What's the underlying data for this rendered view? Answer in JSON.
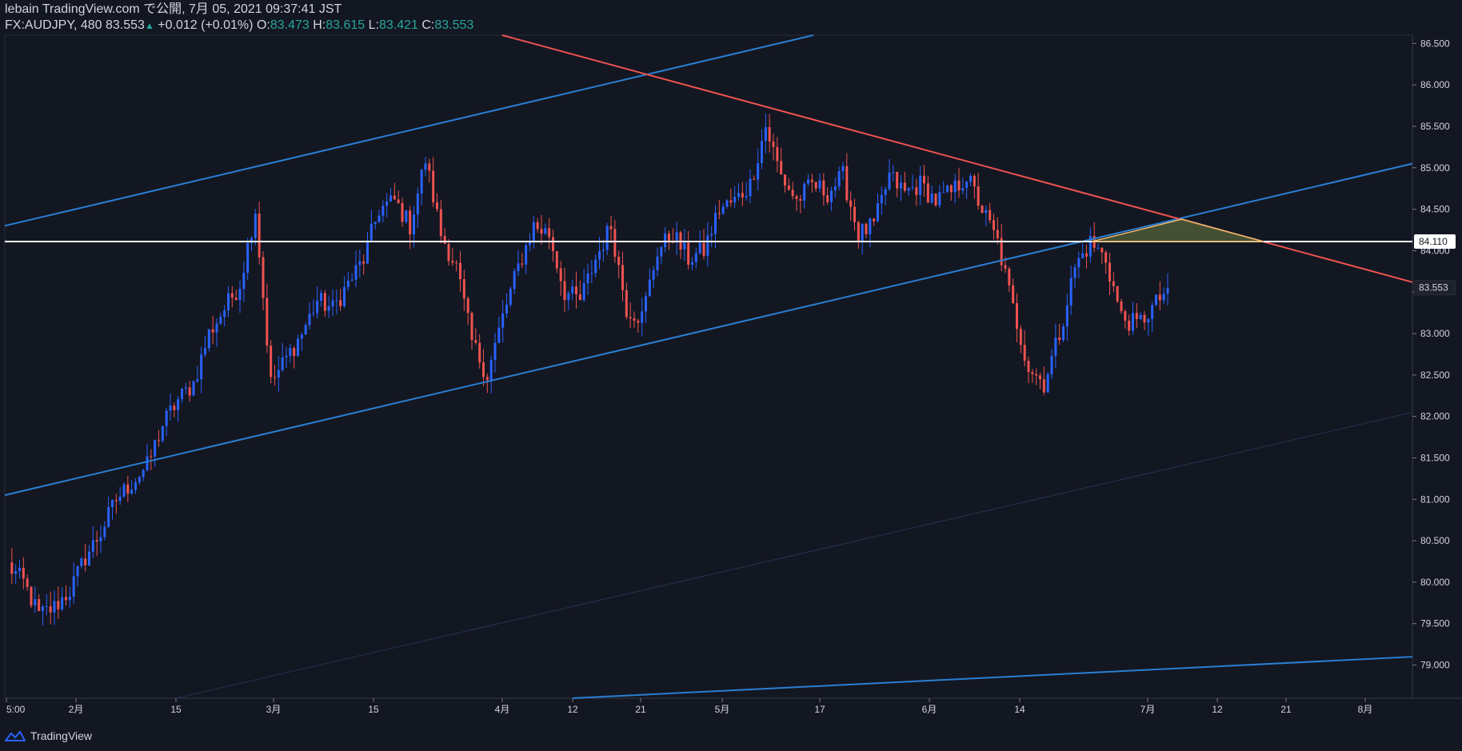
{
  "header": {
    "publisher": "lebain TradingView.com で公開, 7月 05, 2021 09:37:41 JST",
    "symbol": "FX:AUDJPY, 480",
    "last": "83.553",
    "change": "+0.012 (+0.01%)",
    "o_label": "O:",
    "o_value": "83.473",
    "h_label": "H:",
    "h_value": "83.615",
    "l_label": "L:",
    "l_value": "83.421",
    "c_label": "C:",
    "c_value": "83.553"
  },
  "footer": {
    "brand": "TradingView"
  },
  "colors": {
    "background": "#131722",
    "up": "#2962ff",
    "down": "#ef5350",
    "channel": "#2a7fd4",
    "resistance": "#ef5350",
    "horizontal": "#ffffff",
    "triangle_fill": "#5a6a3a",
    "triangle_stroke": "#f0b870"
  },
  "chart_data": {
    "type": "candlestick",
    "symbol": "FX:AUDJPY",
    "timeframe": "480",
    "ylim": [
      78.6,
      86.6
    ],
    "y_ticks": [
      "86.500",
      "86.000",
      "85.500",
      "85.000",
      "84.500",
      "84.000",
      "83.500",
      "83.000",
      "82.500",
      "82.000",
      "81.500",
      "81.000",
      "80.500",
      "80.000",
      "79.500",
      "79.000"
    ],
    "x_ticks": [
      "5:00",
      "2月",
      "15",
      "3月",
      "15",
      "4月",
      "12",
      "21",
      "5月",
      "17",
      "6月",
      "14",
      "7月",
      "12",
      "21",
      "8月"
    ],
    "price_labels": {
      "horizontal_level": "84.110",
      "last_price": "83.553"
    },
    "horizontal_level": 84.11,
    "last_price": 83.553,
    "path": [
      80.2,
      80.0,
      79.6,
      79.7,
      79.9,
      80.3,
      80.6,
      81.0,
      81.2,
      81.4,
      81.9,
      82.2,
      82.4,
      83.0,
      83.3,
      83.6,
      84.5,
      82.4,
      82.7,
      83.0,
      83.4,
      83.3,
      83.6,
      83.9,
      84.5,
      84.6,
      84.3,
      85.1,
      84.2,
      83.8,
      82.9,
      82.5,
      83.2,
      83.8,
      84.3,
      84.2,
      83.5,
      83.4,
      83.9,
      84.3,
      83.3,
      83.2,
      84.0,
      84.2,
      83.9,
      84.0,
      84.5,
      84.6,
      84.8,
      85.5,
      84.9,
      84.6,
      84.8,
      84.7,
      84.9,
      84.2,
      84.3,
      84.9,
      84.7,
      84.8,
      84.6,
      84.7,
      84.9,
      84.5,
      84.1,
      83.3,
      82.6,
      82.4,
      83.0,
      83.8,
      84.1,
      83.9,
      83.2,
      83.1,
      83.3,
      83.55
    ],
    "lines": [
      {
        "name": "channel-upper",
        "points": [
          [
            "5:00",
            84.3
          ],
          [
            "5月",
            86.6
          ]
        ]
      },
      {
        "name": "channel-lower",
        "points": [
          [
            "5:00",
            81.05
          ],
          [
            "8月",
            85.05
          ]
        ]
      },
      {
        "name": "channel-bottom",
        "points": [
          [
            "12",
            78.6
          ],
          [
            "8月",
            79.1
          ]
        ]
      },
      {
        "name": "channel-mid-faint",
        "points": [
          [
            "15",
            78.6
          ],
          [
            "8月",
            82.05
          ]
        ]
      },
      {
        "name": "resistance",
        "points": [
          [
            "4月",
            86.6
          ],
          [
            "8月",
            83.62
          ]
        ]
      },
      {
        "name": "horizontal",
        "points": [
          [
            "5:00",
            84.11
          ],
          [
            "8月",
            84.11
          ]
        ]
      }
    ]
  }
}
